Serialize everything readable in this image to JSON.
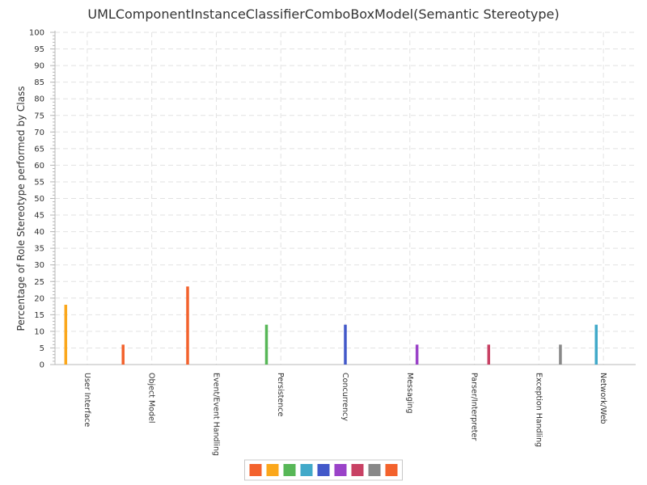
{
  "chart_data": {
    "type": "bar",
    "title": "UMLComponentInstanceClassifierComboBoxModel(Semantic Stereotype)",
    "xlabel": "",
    "ylabel": "Percentage of Role Stereotype performed by Class",
    "ylim": [
      0,
      100
    ],
    "ytick_step": 5,
    "yticks": [
      "0",
      "5",
      "10",
      "15",
      "20",
      "25",
      "30",
      "35",
      "40",
      "45",
      "50",
      "55",
      "60",
      "65",
      "70",
      "75",
      "80",
      "85",
      "90",
      "95",
      "100"
    ],
    "grid": true,
    "legend": "bottom",
    "categories": [
      "User Interface",
      "Object Model",
      "Event/Event Handling",
      "Persistence",
      "Concurrency",
      "Messaging",
      "Parser/Interpreter",
      "Exception Handling",
      "Network/Web"
    ],
    "series": [
      {
        "color": "#f3622d",
        "values": [
          null,
          6,
          23.5,
          null,
          null,
          null,
          null,
          null,
          null
        ]
      },
      {
        "color": "#fba71b",
        "values": [
          18,
          null,
          null,
          null,
          null,
          null,
          null,
          null,
          null
        ]
      },
      {
        "color": "#57b757",
        "values": [
          null,
          null,
          null,
          12,
          null,
          null,
          null,
          null,
          null
        ]
      },
      {
        "color": "#41a9c9",
        "values": [
          null,
          null,
          null,
          null,
          null,
          null,
          null,
          null,
          12
        ]
      },
      {
        "color": "#4258c9",
        "values": [
          null,
          null,
          null,
          null,
          12,
          null,
          null,
          null,
          null
        ]
      },
      {
        "color": "#9a42c8",
        "values": [
          null,
          null,
          null,
          null,
          null,
          6,
          null,
          null,
          null
        ]
      },
      {
        "color": "#c84164",
        "values": [
          null,
          null,
          null,
          null,
          null,
          null,
          6,
          null,
          null
        ]
      },
      {
        "color": "#888888",
        "values": [
          null,
          null,
          null,
          null,
          null,
          null,
          null,
          6,
          null
        ]
      },
      {
        "color": "#f3622d",
        "values": [
          null,
          null,
          null,
          null,
          null,
          null,
          null,
          null,
          null
        ]
      }
    ]
  }
}
